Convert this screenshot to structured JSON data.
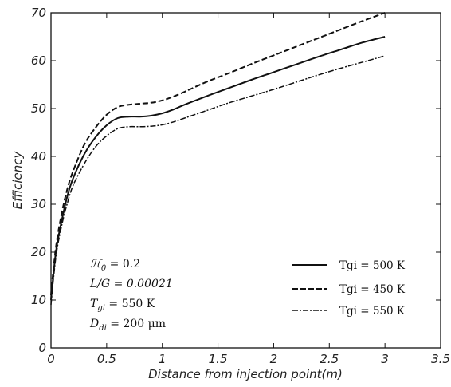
{
  "chart_data": {
    "type": "line",
    "xlabel": "Distance from injection point(m)",
    "ylabel": "Efficiency",
    "xlim": [
      0,
      3.5
    ],
    "ylim": [
      0,
      70
    ],
    "xticks": [
      "0",
      "0.5",
      "1",
      "1.5",
      "2",
      "2.5",
      "3",
      "3.5"
    ],
    "yticks": [
      "0",
      "10",
      "20",
      "30",
      "40",
      "50",
      "60",
      "70"
    ],
    "grid": false,
    "legend_position": "lower-right",
    "annotations": [
      "ℋ₀  = 0.2",
      "L/G = 0.00021",
      "T_gi = 550 K",
      "D_di = 200 μm"
    ],
    "series": [
      {
        "name": "Tgi = 500 K",
        "style": "solid",
        "x": [
          0,
          0.02,
          0.05,
          0.1,
          0.15,
          0.2,
          0.3,
          0.4,
          0.5,
          0.6,
          0.7,
          0.8,
          0.9,
          1.0,
          1.1,
          1.2,
          1.4,
          1.6,
          1.8,
          2.0,
          2.2,
          2.4,
          2.6,
          2.8,
          3.0
        ],
        "values": [
          10,
          15,
          21,
          27,
          32,
          35.5,
          40.5,
          44,
          46.5,
          48,
          48.3,
          48.3,
          48.5,
          49,
          49.8,
          50.8,
          52.6,
          54.3,
          56,
          57.6,
          59.2,
          60.8,
          62.3,
          63.8,
          65
        ]
      },
      {
        "name": "Tgi = 450 K",
        "style": "dashed",
        "x": [
          0,
          0.02,
          0.05,
          0.1,
          0.15,
          0.2,
          0.3,
          0.4,
          0.5,
          0.6,
          0.7,
          0.8,
          0.9,
          1.0,
          1.1,
          1.2,
          1.4,
          1.6,
          1.8,
          2.0,
          2.2,
          2.4,
          2.6,
          2.8,
          3.0
        ],
        "values": [
          11,
          16,
          22,
          28.5,
          33.5,
          37,
          42.5,
          46,
          48.7,
          50.3,
          50.8,
          51,
          51.2,
          51.7,
          52.5,
          53.5,
          55.6,
          57.4,
          59.3,
          61.1,
          62.9,
          64.7,
          66.5,
          68.3,
          70
        ]
      },
      {
        "name": "Tgi = 550 K",
        "style": "dashdot",
        "x": [
          0,
          0.02,
          0.05,
          0.1,
          0.15,
          0.2,
          0.3,
          0.4,
          0.5,
          0.6,
          0.7,
          0.8,
          0.9,
          1.0,
          1.1,
          1.2,
          1.4,
          1.6,
          1.8,
          2.0,
          2.2,
          2.4,
          2.6,
          2.8,
          3.0
        ],
        "values": [
          9,
          14,
          20,
          26,
          30.5,
          34,
          38.5,
          42,
          44.3,
          45.8,
          46.2,
          46.2,
          46.3,
          46.6,
          47.2,
          48,
          49.6,
          51.2,
          52.6,
          54,
          55.5,
          57,
          58.4,
          59.7,
          61
        ]
      }
    ]
  }
}
